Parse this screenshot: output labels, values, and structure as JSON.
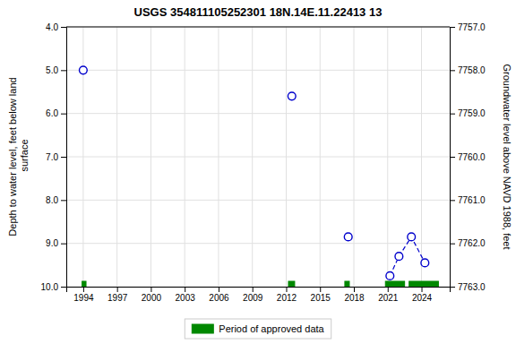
{
  "chart_data": {
    "type": "scatter",
    "title": "USGS 354811105252301 18N.14E.11.22413 13",
    "y_label": "Depth to water level, feet below land\n surface",
    "y2_label": "Groundwater level above NAVD 1988, feet",
    "xlim": [
      1992.5,
      2026.5
    ],
    "xticks": [
      1994,
      1997,
      2000,
      2003,
      2006,
      2009,
      2012,
      2015,
      2018,
      2021,
      2024
    ],
    "ylim": [
      10.0,
      4.0
    ],
    "yticks": [
      {
        "value": 4.0,
        "label": "4.0"
      },
      {
        "value": 5.0,
        "label": "5.0"
      },
      {
        "value": 6.0,
        "label": "6.0"
      },
      {
        "value": 7.0,
        "label": "7.0"
      },
      {
        "value": 8.0,
        "label": "8.0"
      },
      {
        "value": 9.0,
        "label": "9.0"
      },
      {
        "value": 10.0,
        "label": "10.0"
      }
    ],
    "y2lim": [
      7763.0,
      7757.0
    ],
    "y2ticks": [
      {
        "value": 7763.0,
        "label": "7763.0"
      },
      {
        "value": 7762.0,
        "label": "7762.0"
      },
      {
        "value": 7761.0,
        "label": "7761.0"
      },
      {
        "value": 7760.0,
        "label": "7760.0"
      },
      {
        "value": 7759.0,
        "label": "7759.0"
      },
      {
        "value": 7758.0,
        "label": "7758.0"
      },
      {
        "value": 7757.0,
        "label": "7757.0"
      }
    ],
    "grid": true,
    "legend": "bottom",
    "series": [
      {
        "type": "scatter",
        "marker": "circle",
        "color": "#0000CC",
        "x": [
          1994.0,
          2012.5,
          2017.5,
          2021.2,
          2022.0,
          2023.1,
          2024.3
        ],
        "values": [
          5.0,
          5.6,
          8.85,
          9.75,
          9.3,
          8.85,
          9.45
        ]
      },
      {
        "type": "line",
        "line_style": "dashed",
        "color": "#0000CC",
        "x": [
          2021.2,
          2022.0,
          2023.1,
          2024.3
        ],
        "values": [
          9.75,
          9.3,
          8.85,
          9.45
        ]
      },
      {
        "type": "span",
        "name": "Period of approved data",
        "color": "#008800",
        "y": 10.0,
        "x_start": [
          1993.9,
          2012.2,
          2017.2,
          2020.8,
          2022.9
        ],
        "x_end": [
          1994.25,
          2012.75,
          2017.6,
          2022.5,
          2025.5
        ]
      }
    ]
  }
}
